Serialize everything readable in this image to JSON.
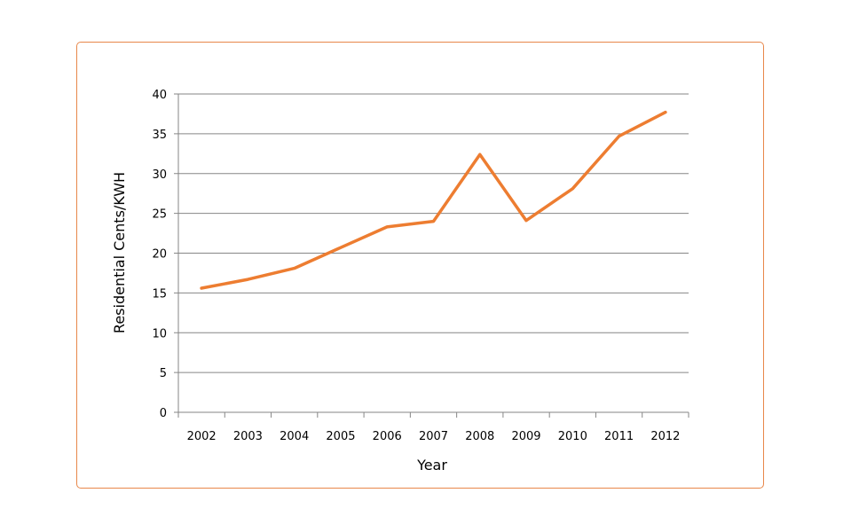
{
  "chart_data": {
    "type": "line",
    "title": "",
    "xlabel": "Year",
    "ylabel": "Residential  Cents/KWH",
    "categories": [
      "2002",
      "2003",
      "2004",
      "2005",
      "2006",
      "2007",
      "2008",
      "2009",
      "2010",
      "2011",
      "2012"
    ],
    "series": [
      {
        "values": [
          15.6,
          16.7,
          18.1,
          20.7,
          23.3,
          24.0,
          32.4,
          24.1,
          28.1,
          34.7,
          37.7
        ],
        "color": "#ED7D31"
      }
    ],
    "ylim": [
      0,
      40
    ],
    "yticks": [
      0,
      5,
      10,
      15,
      20,
      25,
      30,
      35,
      40
    ],
    "grid": true,
    "legend": "none"
  },
  "colors": {
    "line": "#ED7D31",
    "frame_border": "#E8874A",
    "gridline": "#868686",
    "axis": "#868686"
  }
}
